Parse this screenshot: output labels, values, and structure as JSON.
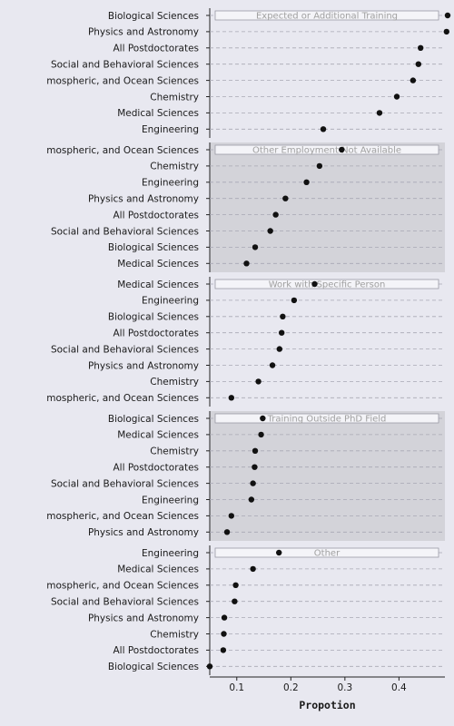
{
  "chart_data": {
    "type": "scatter",
    "xlabel": "Propotion",
    "xlim": [
      0.05,
      0.485
    ],
    "xticks": [
      0.1,
      0.2,
      0.3,
      0.4
    ],
    "xtick_labels": [
      "0.1",
      "0.2",
      "0.3",
      "0.4"
    ],
    "colors": {
      "background": "#e8e8f0",
      "panel_light": "#e8e8f0",
      "panel_dark": "#d3d3d9",
      "strip": "#f4f4f8",
      "point": "#111111",
      "overall_marker": "#888888"
    },
    "panels": [
      {
        "strip": "Expected or Additional Training",
        "shaded": false,
        "overall": 0.49,
        "categories": [
          "Biological Sciences",
          "Physics and Astronomy",
          "All Postdoctorates",
          "Social and Behavioral Sciences",
          "mospheric, and Ocean Sciences",
          "Chemistry",
          "Medical Sciences",
          "Engineering"
        ],
        "values": [
          0.49,
          0.488,
          0.44,
          0.436,
          0.426,
          0.396,
          0.364,
          0.26
        ]
      },
      {
        "strip": "Other Employment Not Available",
        "shaded": true,
        "overall": 0.294,
        "categories": [
          "mospheric, and Ocean Sciences",
          "Chemistry",
          "Engineering",
          "Physics and Astronomy",
          "All Postdoctorates",
          "Social and Behavioral Sciences",
          "Biological Sciences",
          "Medical Sciences"
        ],
        "values": [
          0.294,
          0.253,
          0.229,
          0.19,
          0.172,
          0.162,
          0.134,
          0.118
        ]
      },
      {
        "strip": "Work with Specific Person",
        "shaded": false,
        "overall": 0.244,
        "categories": [
          "Medical Sciences",
          "Engineering",
          "Biological Sciences",
          "All Postdoctorates",
          "Social and Behavioral Sciences",
          "Physics and Astronomy",
          "Chemistry",
          "mospheric, and Ocean Sciences"
        ],
        "values": [
          0.244,
          0.206,
          0.185,
          0.183,
          0.179,
          0.166,
          0.14,
          0.09
        ]
      },
      {
        "strip": "Training Outside PhD Field",
        "shaded": true,
        "overall": 0.148,
        "categories": [
          "Biological Sciences",
          "Medical Sciences",
          "Chemistry",
          "All Postdoctorates",
          "Social and Behavioral Sciences",
          "Engineering",
          "mospheric, and Ocean Sciences",
          "Physics and Astronomy"
        ],
        "values": [
          0.148,
          0.145,
          0.134,
          0.133,
          0.13,
          0.127,
          0.09,
          0.082
        ]
      },
      {
        "strip": "Other",
        "shaded": false,
        "overall": 0.178,
        "categories": [
          "Engineering",
          "Medical Sciences",
          "mospheric, and Ocean Sciences",
          "Social and Behavioral Sciences",
          "Physics and Astronomy",
          "Chemistry",
          "All Postdoctorates",
          "Biological Sciences"
        ],
        "values": [
          0.178,
          0.13,
          0.098,
          0.096,
          0.077,
          0.076,
          0.075,
          0.05
        ]
      }
    ]
  }
}
